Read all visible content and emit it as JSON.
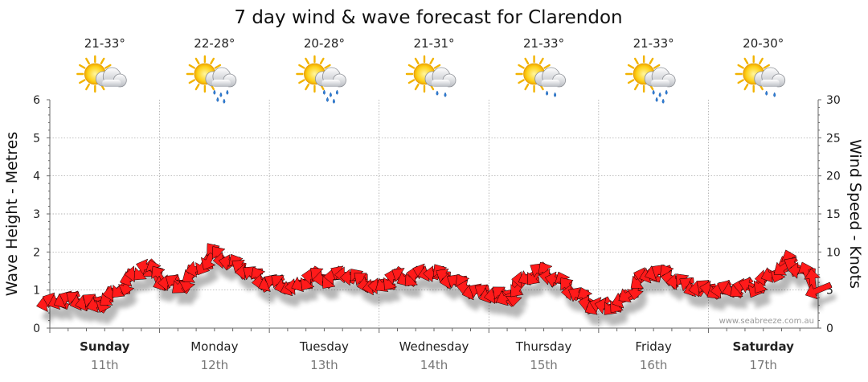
{
  "chart_data": {
    "type": "line",
    "title": "7 day wind & wave forecast for Clarendon",
    "ylabel_left": "Wave Height - Metres",
    "ylabel_right": "Wind Speed - Knots",
    "ylim_left": [
      0,
      6
    ],
    "yticks_left": [
      "0",
      "1",
      "2",
      "3",
      "4",
      "5",
      "6"
    ],
    "ylim_right": [
      0,
      30
    ],
    "yticks_right": [
      "0",
      "5",
      "10",
      "15",
      "20",
      "25",
      "30"
    ],
    "grid": true,
    "days": [
      {
        "name": "Sunday",
        "date": "11th",
        "temp": "21-33°",
        "icon": "sun-cloud-icon",
        "bold": true
      },
      {
        "name": "Monday",
        "date": "12th",
        "temp": "22-28°",
        "icon": "sun-cloud-rain-icon",
        "bold": false
      },
      {
        "name": "Tuesday",
        "date": "13th",
        "temp": "20-28°",
        "icon": "sun-cloud-rain-icon",
        "bold": false
      },
      {
        "name": "Wednesday",
        "date": "14th",
        "temp": "21-31°",
        "icon": "sun-cloud-showers-icon",
        "bold": false
      },
      {
        "name": "Thursday",
        "date": "15th",
        "temp": "21-33°",
        "icon": "sun-cloud-showers-icon",
        "bold": false
      },
      {
        "name": "Friday",
        "date": "16th",
        "temp": "21-33°",
        "icon": "sun-cloud-rain-icon",
        "bold": false
      },
      {
        "name": "Saturday",
        "date": "17th",
        "temp": "20-30°",
        "icon": "sun-cloud-showers-icon",
        "bold": true
      }
    ],
    "series": [
      {
        "name": "Wind Speed - Knots",
        "x_days": [
          0.0,
          0.15,
          0.3,
          0.45,
          0.6,
          0.75,
          0.9,
          1.05,
          1.2,
          1.35,
          1.5,
          1.65,
          1.8,
          1.95,
          2.1,
          2.25,
          2.4,
          2.55,
          2.7,
          2.85,
          3.0,
          3.15,
          3.3,
          3.45,
          3.6,
          3.75,
          3.9,
          4.05,
          4.2,
          4.35,
          4.5,
          4.65,
          4.8,
          4.95,
          5.1,
          5.25,
          5.4,
          5.55,
          5.7,
          5.85,
          6.0,
          6.15,
          6.3,
          6.45,
          6.6,
          6.75,
          6.9,
          7.0
        ],
        "values": [
          3.3,
          3.8,
          3.5,
          3.2,
          4.6,
          6.6,
          8.0,
          6.1,
          5.7,
          7.7,
          9.8,
          8.6,
          7.5,
          6.1,
          5.8,
          5.3,
          6.8,
          6.5,
          7.1,
          6.2,
          5.3,
          6.7,
          6.7,
          7.4,
          6.8,
          5.7,
          4.7,
          4.4,
          4.1,
          6.7,
          7.4,
          6.1,
          4.5,
          3.0,
          2.8,
          3.9,
          6.6,
          7.4,
          6.4,
          5.4,
          5.1,
          5.0,
          5.3,
          5.6,
          7.2,
          8.6,
          7.0,
          5.0
        ]
      }
    ],
    "credit": "www.seabreeze.com.au"
  }
}
